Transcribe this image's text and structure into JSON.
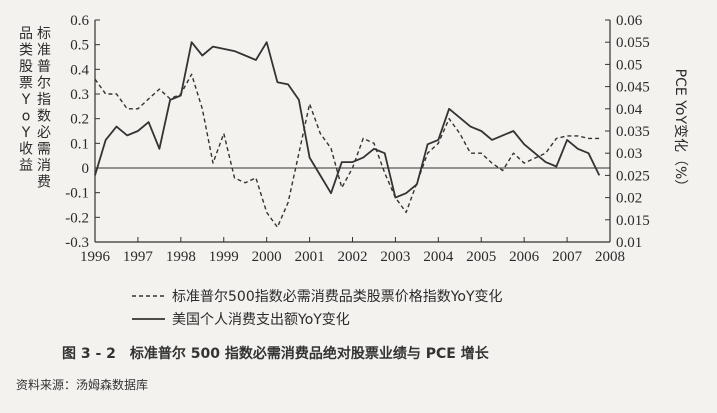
{
  "chart_data": {
    "type": "line",
    "x": [
      1996.0,
      1996.25,
      1996.5,
      1996.75,
      1997.0,
      1997.25,
      1997.5,
      1997.75,
      1998.0,
      1998.25,
      1998.5,
      1998.75,
      1999.0,
      1999.25,
      1999.5,
      1999.75,
      2000.0,
      2000.25,
      2000.5,
      2000.75,
      2001.0,
      2001.25,
      2001.5,
      2001.75,
      2002.0,
      2002.25,
      2002.5,
      2002.75,
      2003.0,
      2003.25,
      2003.5,
      2003.75,
      2004.0,
      2004.25,
      2004.5,
      2004.75,
      2005.0,
      2005.25,
      2005.5,
      2005.75,
      2006.0,
      2006.25,
      2006.5,
      2006.75,
      2007.0,
      2007.25,
      2007.5,
      2007.75
    ],
    "series": [
      {
        "name": "标准普尔500指数必需消费品类股票价格指数YoY变化",
        "axis": "left",
        "style": "dashed",
        "values": [
          0.36,
          0.3,
          0.3,
          0.24,
          0.24,
          0.28,
          0.32,
          0.28,
          0.3,
          0.38,
          0.24,
          0.02,
          0.14,
          -0.04,
          -0.06,
          -0.04,
          -0.18,
          -0.24,
          -0.14,
          0.06,
          0.26,
          0.14,
          0.08,
          -0.08,
          0.0,
          0.12,
          0.1,
          -0.02,
          -0.12,
          -0.18,
          -0.06,
          0.06,
          0.1,
          0.2,
          0.14,
          0.06,
          0.06,
          0.02,
          -0.01,
          0.06,
          0.02,
          0.04,
          0.06,
          0.12,
          0.13,
          0.13,
          0.12,
          0.12
        ]
      },
      {
        "name": "美国个人消费支出额YoY变化",
        "axis": "right",
        "style": "solid",
        "values": [
          0.025,
          0.033,
          0.036,
          0.034,
          0.035,
          0.037,
          0.031,
          0.042,
          0.043,
          0.055,
          0.052,
          0.054,
          0.0535,
          0.053,
          0.052,
          0.051,
          0.055,
          0.046,
          0.0455,
          0.042,
          0.029,
          0.025,
          0.021,
          0.028,
          0.028,
          0.029,
          0.031,
          0.03,
          0.02,
          0.021,
          0.023,
          0.032,
          0.033,
          0.04,
          0.038,
          0.036,
          0.035,
          0.033,
          0.034,
          0.035,
          0.032,
          0.03,
          0.028,
          0.027,
          0.033,
          0.031,
          0.03,
          0.025
        ]
      }
    ],
    "x_ticks": [
      "1996",
      "1997",
      "1998",
      "1999",
      "2000",
      "2001",
      "2002",
      "2003",
      "2004",
      "2005",
      "2006",
      "2007",
      "2008"
    ],
    "xlim": [
      1996,
      2008
    ],
    "y_left_ticks": [
      "-0.3",
      "-0.2",
      "-0.1",
      "0",
      "0.1",
      "0.2",
      "0.3",
      "0.4",
      "0.5",
      "0.6"
    ],
    "ylim_left": [
      -0.3,
      0.6
    ],
    "y_right_ticks": [
      "0.01",
      "0.015",
      "0.02",
      "0.025",
      "0.03",
      "0.035",
      "0.04",
      "0.045",
      "0.05",
      "0.055",
      "0.06"
    ],
    "ylim_right": [
      0.01,
      0.06
    ],
    "ylabel_left": "标准普尔指数必需消费品类股票YoY收益",
    "ylabel_right": "PCE YoY变化（%）",
    "legend_placement": "bottom",
    "grid": false
  },
  "caption": "图 3 - 2　标准普尔 500 指数必需消费品绝对股票业绩与 PCE 增长",
  "source": "资料来源：汤姆森数据库",
  "colors": {
    "line": "#333333",
    "background": "#f3f2ee"
  }
}
